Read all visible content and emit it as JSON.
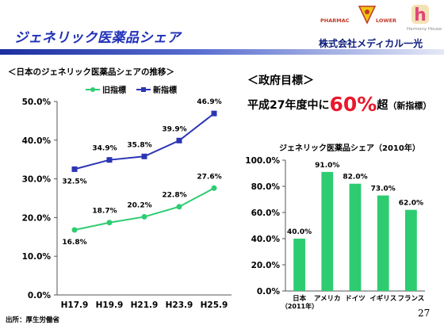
{
  "header": {
    "title": "ジェネリック医薬品シェア",
    "logo_pharmac": "PHARMAC",
    "logo_lower": "LOWER",
    "logo_harmony": "Harmony House",
    "company": "株式会社メディカル一光",
    "colors": {
      "title": "#1f2fb8",
      "accent_rule": "#1c2fa0",
      "logo_red": "#c0392b",
      "logo_pink": "#e0457b"
    }
  },
  "line_chart_title": "＜日本のジェネリック医薬品シェアの推移＞",
  "government": {
    "heading": "＜政府目標＞",
    "target_prefix": "平成27年度中に",
    "target_value": "60%",
    "target_suffix": "超",
    "target_note": "（新指標）"
  },
  "bar_chart_title": "ジェネリック医薬品シェア（2010年）",
  "source": "出所：厚生労働省",
  "page_number": "27",
  "chart_data": [
    {
      "type": "line",
      "x": [
        "H17.9",
        "H19.9",
        "H21.9",
        "H23.9",
        "H25.9"
      ],
      "series": [
        {
          "name": "旧指標",
          "values": [
            16.8,
            18.7,
            20.2,
            22.8,
            27.6
          ],
          "labels": [
            "16.8%",
            "18.7%",
            "20.2%",
            "22.8%",
            "27.6%"
          ],
          "color": "#2ecc71",
          "marker": "circle"
        },
        {
          "name": "新指標",
          "values": [
            32.5,
            34.9,
            35.8,
            39.9,
            46.9
          ],
          "labels": [
            "32.5%",
            "34.9%",
            "35.8%",
            "39.9%",
            "46.9%"
          ],
          "color": "#2b35b5",
          "marker": "square"
        }
      ],
      "yticks": [
        "0.0%",
        "10.0%",
        "20.0%",
        "30.0%",
        "40.0%",
        "50.0%"
      ],
      "ylim": [
        0,
        50
      ],
      "legend": "top",
      "grid": false
    },
    {
      "type": "bar",
      "categories": [
        "日本",
        "アメリカ",
        "ドイツ",
        "イギリス",
        "フランス"
      ],
      "category_note": "（2011年）",
      "values": [
        40.0,
        91.0,
        82.0,
        73.0,
        62.0
      ],
      "labels": [
        "40.0%",
        "91.0%",
        "82.0%",
        "73.0%",
        "62.0%"
      ],
      "yticks": [
        "0.0%",
        "20.0%",
        "40.0%",
        "60.0%",
        "80.0%",
        "100.0%"
      ],
      "ylim": [
        0,
        100
      ],
      "color": "#2ecc71",
      "grid": false
    }
  ]
}
